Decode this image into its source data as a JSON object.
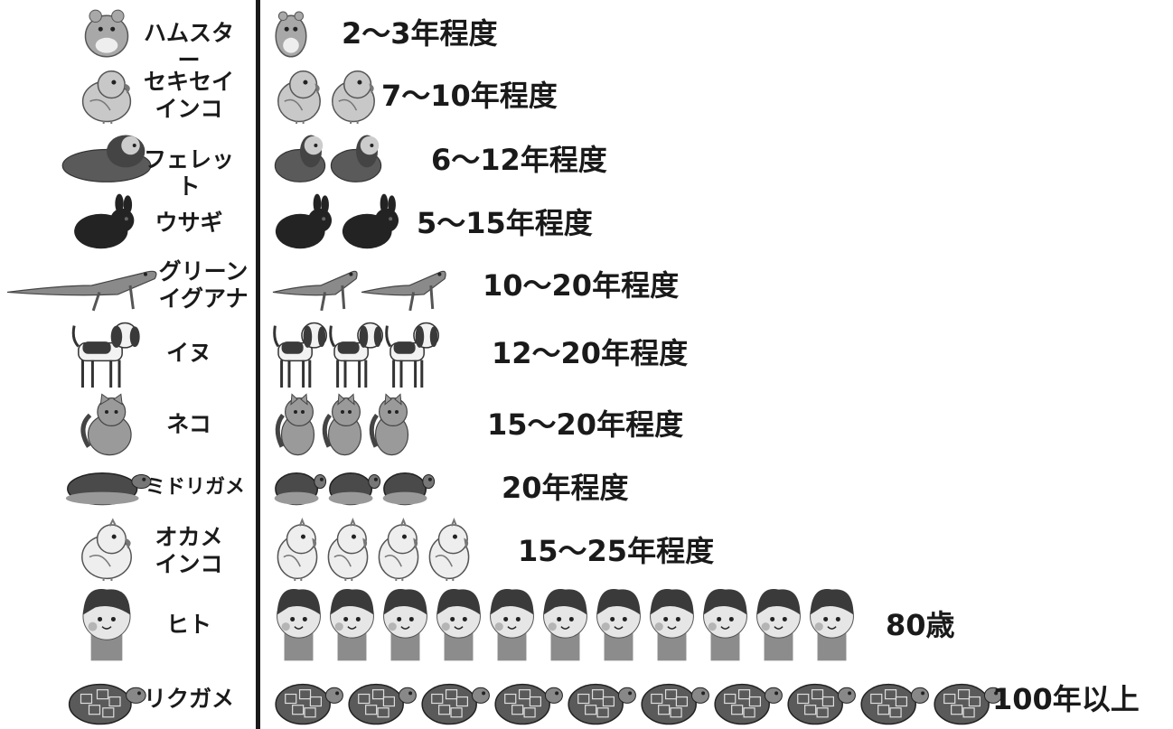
{
  "chart_data": {
    "type": "pictograph",
    "unit": "years of lifespan (approx. one icon per ~8-10 years)",
    "rows": [
      {
        "animal": "ハムスター",
        "icon": "hamster-icon",
        "value_label": "2～3年程度",
        "min_years": 2,
        "max_years": 3,
        "icon_count": 0.5,
        "color": "#a8a8a8"
      },
      {
        "animal": "セキセイ\nインコ",
        "icon": "budgie-icon",
        "value_label": "7～10年程度",
        "min_years": 7,
        "max_years": 10,
        "icon_count": 2,
        "color": "#c8c8c8"
      },
      {
        "animal": "フェレット",
        "icon": "ferret-icon",
        "value_label": "6～12年程度",
        "min_years": 6,
        "max_years": 12,
        "icon_count": 2,
        "color": "#5a5a5a"
      },
      {
        "animal": "ウサギ",
        "icon": "rabbit-icon",
        "value_label": "5～15年程度",
        "min_years": 5,
        "max_years": 15,
        "icon_count": 2,
        "color": "#232323"
      },
      {
        "animal": "グリーン\nイグアナ",
        "icon": "iguana-icon",
        "value_label": "10～20年程度",
        "min_years": 10,
        "max_years": 20,
        "icon_count": 2,
        "color": "#8a8a8a"
      },
      {
        "animal": "イヌ",
        "icon": "dog-icon",
        "value_label": "12～20年程度",
        "min_years": 12,
        "max_years": 20,
        "icon_count": 3,
        "color": "#3a3a3a"
      },
      {
        "animal": "ネコ",
        "icon": "cat-icon",
        "value_label": "15～20年程度",
        "min_years": 15,
        "max_years": 20,
        "icon_count": 3,
        "color": "#9a9a9a"
      },
      {
        "animal": "ミドリガメ",
        "icon": "turtle-icon",
        "value_label": "20年程度",
        "min_years": 20,
        "max_years": 20,
        "icon_count": 3,
        "color": "#4a4a4a"
      },
      {
        "animal": "オカメ\nインコ",
        "icon": "cockatiel-icon",
        "value_label": "15～25年程度",
        "min_years": 15,
        "max_years": 25,
        "icon_count": 4,
        "color": "#eeeeee"
      },
      {
        "animal": "ヒト",
        "icon": "human-icon",
        "value_label": "80歳",
        "min_years": 80,
        "max_years": 80,
        "icon_count": 11,
        "color": "#3a3a3a"
      },
      {
        "animal": "リクガメ",
        "icon": "tortoise-icon",
        "value_label": "100年以上",
        "min_years": 100,
        "max_years": 100,
        "icon_count": 10,
        "color": "#5a5a5a"
      }
    ]
  }
}
